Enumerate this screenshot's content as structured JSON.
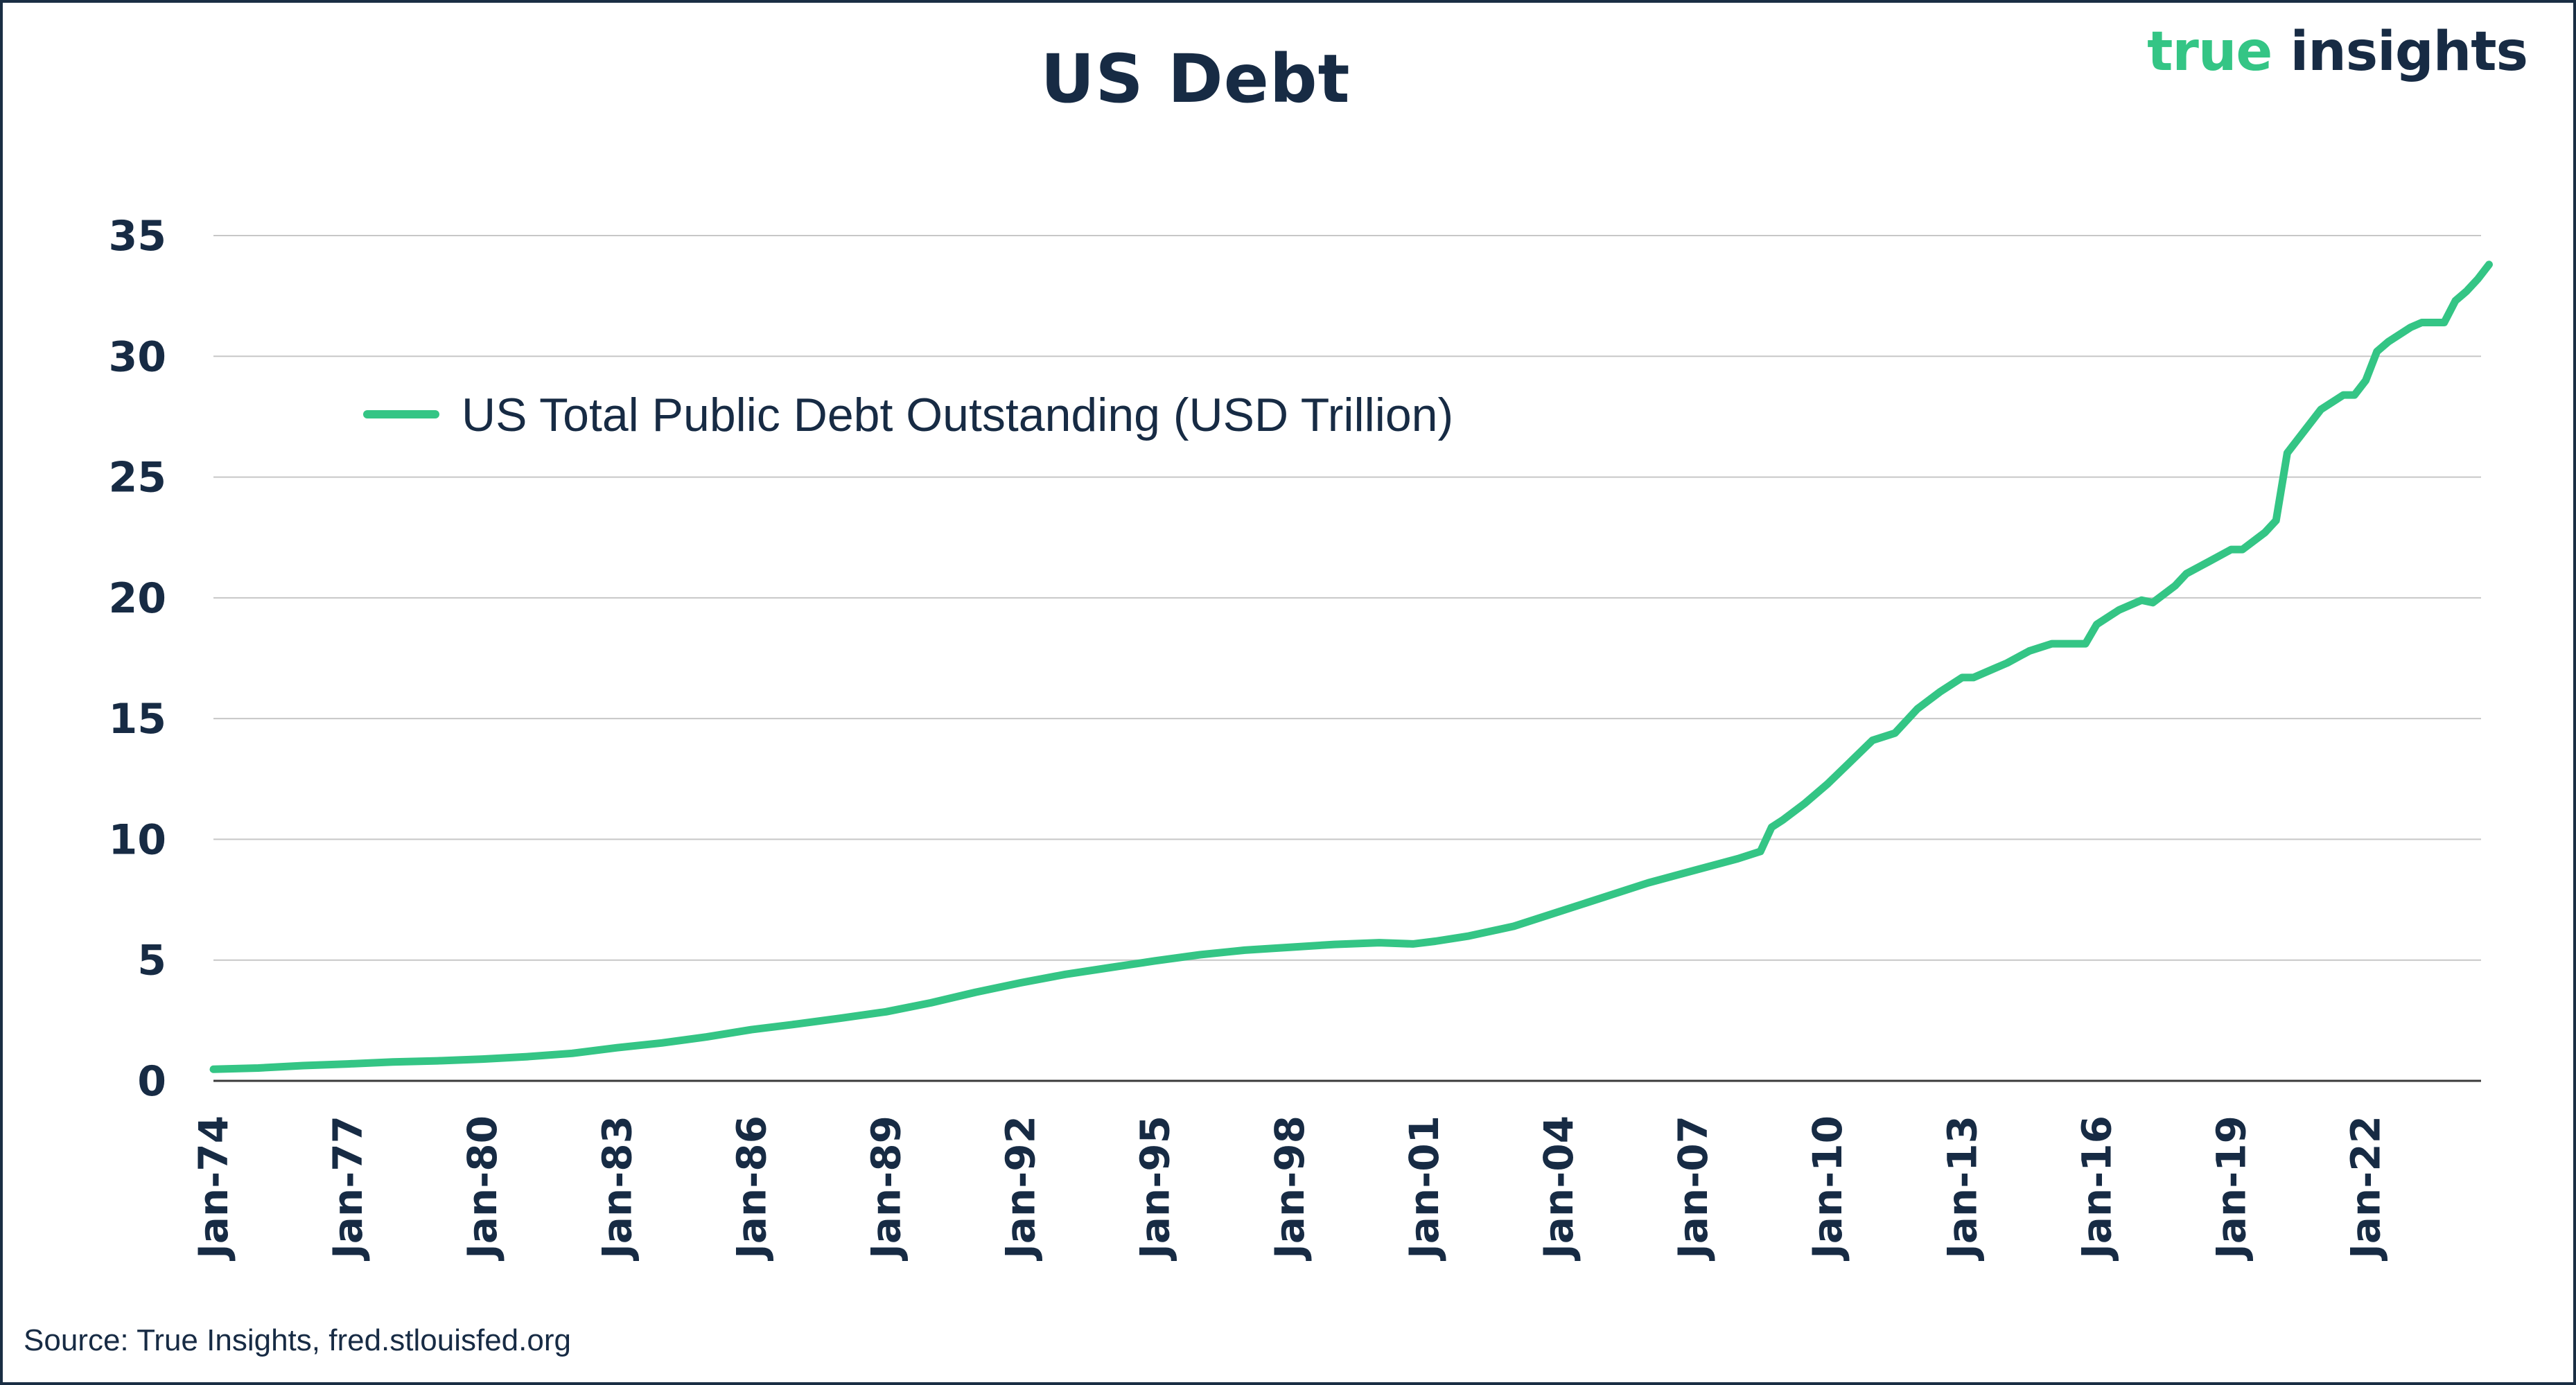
{
  "header": {
    "title": "US Debt",
    "logo_part1": "true",
    "logo_part2": "insights"
  },
  "footer": {
    "source": "Source: True Insights, fred.stlouisfed.org"
  },
  "colors": {
    "series": "#34c585",
    "text": "#172b44",
    "grid": "#c7c7c7"
  },
  "chart_data": {
    "type": "line",
    "title": "US Debt",
    "xlabel": "",
    "ylabel": "",
    "ylim": [
      0,
      35
    ],
    "y_ticks": [
      "0",
      "5",
      "10",
      "15",
      "20",
      "25",
      "30",
      "35"
    ],
    "x_ticks": [
      "Jan-74",
      "Jan-77",
      "Jan-80",
      "Jan-83",
      "Jan-86",
      "Jan-89",
      "Jan-92",
      "Jan-95",
      "Jan-98",
      "Jan-01",
      "Jan-04",
      "Jan-07",
      "Jan-10",
      "Jan-13",
      "Jan-16",
      "Jan-19",
      "Jan-22"
    ],
    "x_ticks_year": [
      1974,
      1977,
      1980,
      1983,
      1986,
      1989,
      1992,
      1995,
      1998,
      2001,
      2004,
      2007,
      2010,
      2013,
      2016,
      2019,
      2022
    ],
    "x_range_year": [
      1974,
      2024.75
    ],
    "grid": true,
    "legend_position": "top-left",
    "series": [
      {
        "name": "US Total Public Debt Outstanding (USD Trillion)",
        "x_year": [
          1974,
          1975,
          1976,
          1977,
          1978,
          1979,
          1980,
          1981,
          1982,
          1983,
          1984,
          1985,
          1986,
          1987,
          1988,
          1989,
          1990,
          1991,
          1992,
          1993,
          1994,
          1995,
          1996,
          1997,
          1998,
          1999,
          2000,
          2000.75,
          2001.25,
          2002,
          2003,
          2004,
          2005,
          2006,
          2007,
          2008,
          2008.5,
          2008.75,
          2009,
          2009.5,
          2010,
          2010.5,
          2011,
          2011.5,
          2012,
          2012.5,
          2013,
          2013.25,
          2013.75,
          2014,
          2014.5,
          2015,
          2015.75,
          2016,
          2016.5,
          2017,
          2017.25,
          2017.75,
          2018,
          2018.5,
          2019,
          2019.25,
          2019.75,
          2020,
          2020.25,
          2020.5,
          2021,
          2021.5,
          2021.75,
          2022,
          2022.25,
          2022.5,
          2023,
          2023.25,
          2023.5,
          2023.75,
          2024,
          2024.25,
          2024.5,
          2024.75
        ],
        "values": [
          0.48,
          0.53,
          0.63,
          0.7,
          0.78,
          0.83,
          0.9,
          1.0,
          1.14,
          1.37,
          1.57,
          1.82,
          2.12,
          2.35,
          2.6,
          2.86,
          3.23,
          3.67,
          4.06,
          4.41,
          4.69,
          4.97,
          5.22,
          5.41,
          5.53,
          5.65,
          5.72,
          5.67,
          5.78,
          6.0,
          6.4,
          7.0,
          7.6,
          8.2,
          8.7,
          9.2,
          9.5,
          10.5,
          10.8,
          11.5,
          12.3,
          13.2,
          14.1,
          14.4,
          15.4,
          16.1,
          16.7,
          16.7,
          17.1,
          17.3,
          17.8,
          18.1,
          18.1,
          18.9,
          19.5,
          19.9,
          19.8,
          20.5,
          21.0,
          21.5,
          22.0,
          22.0,
          22.7,
          23.2,
          26.0,
          26.6,
          27.8,
          28.4,
          28.4,
          29.0,
          30.2,
          30.6,
          31.2,
          31.4,
          31.4,
          31.4,
          32.3,
          32.7,
          33.2,
          33.8
        ]
      }
    ]
  }
}
